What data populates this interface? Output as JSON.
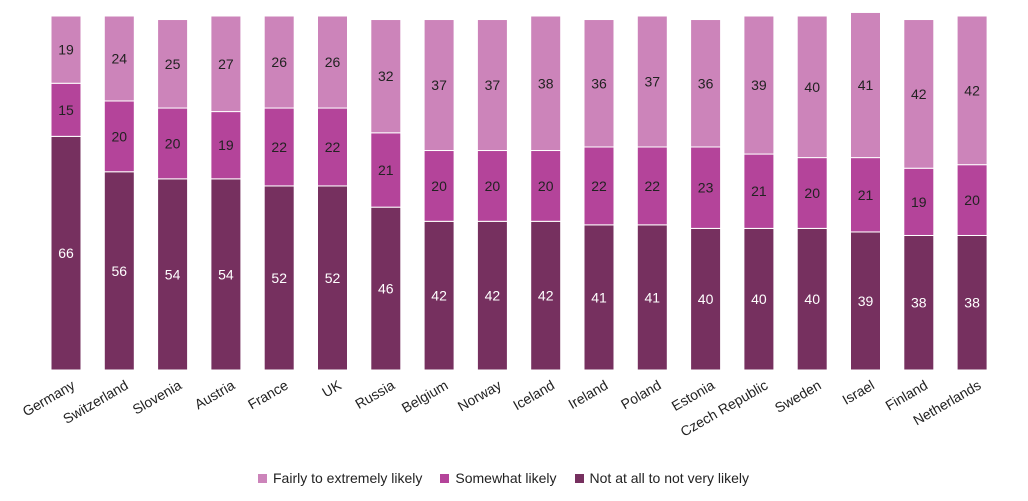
{
  "chart_data": {
    "type": "bar",
    "stacked": true,
    "categories": [
      "Germany",
      "Switzerland",
      "Slovenia",
      "Austria",
      "France",
      "UK",
      "Russia",
      "Belgium",
      "Norway",
      "Iceland",
      "Ireland",
      "Poland",
      "Estonia",
      "Czech Republic",
      "Sweden",
      "Israel",
      "Finland",
      "Netherlands"
    ],
    "series": [
      {
        "name": "Not at all to not very likely",
        "color": "#76305F",
        "values": [
          66,
          56,
          54,
          54,
          52,
          52,
          46,
          42,
          42,
          42,
          41,
          41,
          40,
          40,
          40,
          39,
          38,
          38
        ]
      },
      {
        "name": "Somewhat likely",
        "color": "#B4449A",
        "values": [
          15,
          20,
          20,
          19,
          22,
          22,
          21,
          20,
          20,
          20,
          22,
          22,
          23,
          21,
          20,
          21,
          19,
          20
        ]
      },
      {
        "name": "Fairly to extremely likely",
        "color": "#CC84BA",
        "values": [
          19,
          24,
          25,
          27,
          26,
          26,
          32,
          37,
          37,
          38,
          36,
          37,
          36,
          39,
          40,
          41,
          42,
          42
        ]
      }
    ],
    "legend_order": [
      "Fairly to extremely likely",
      "Somewhat likely",
      "Not at all to not very likely"
    ],
    "legend_position": "bottom",
    "ylim": [
      0,
      100
    ],
    "grid": false
  }
}
